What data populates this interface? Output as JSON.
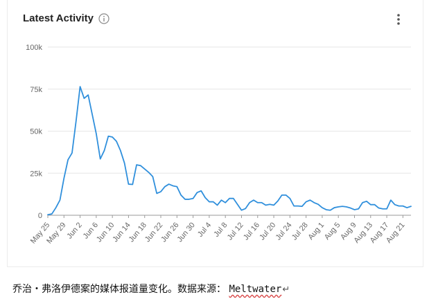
{
  "card": {
    "title": "Latest Activity",
    "info_icon": "info-circle-icon",
    "menu_icon": "more-vertical-icon"
  },
  "chart_data": {
    "type": "line",
    "title": "Latest Activity",
    "xlabel": "",
    "ylabel": "",
    "ylim": [
      0,
      100000
    ],
    "yticks": [
      0,
      25000,
      50000,
      75000,
      100000
    ],
    "ytick_labels": [
      "0",
      "25k",
      "50k",
      "75k",
      "100k"
    ],
    "xtick_labels": [
      "May 25",
      "May 29",
      "Jun 2",
      "Jun 6",
      "Jun 10",
      "Jun 14",
      "Jun 18",
      "Jun 22",
      "Jun 26",
      "Jun 30",
      "Jul 4",
      "Jul 8",
      "Jul 12",
      "Jul 16",
      "Jul 20",
      "Jul 24",
      "Jul 28",
      "Aug 1",
      "Aug 5",
      "Aug 9",
      "Aug 13",
      "Aug 17",
      "Aug 21"
    ],
    "grid": true,
    "line_color": "#2f8fdc",
    "series": [
      {
        "x": [
          "May 25",
          "May 26",
          "May 27",
          "May 28",
          "May 29",
          "May 30",
          "May 31",
          "Jun 1",
          "Jun 2",
          "Jun 3",
          "Jun 4",
          "Jun 5",
          "Jun 6",
          "Jun 7",
          "Jun 8",
          "Jun 9",
          "Jun 10",
          "Jun 11",
          "Jun 12",
          "Jun 13",
          "Jun 14",
          "Jun 15",
          "Jun 16",
          "Jun 17",
          "Jun 18",
          "Jun 19",
          "Jun 20",
          "Jun 21",
          "Jun 22",
          "Jun 23",
          "Jun 24",
          "Jun 25",
          "Jun 26",
          "Jun 27",
          "Jun 28",
          "Jun 29",
          "Jun 30",
          "Jul 1",
          "Jul 2",
          "Jul 3",
          "Jul 4",
          "Jul 5",
          "Jul 6",
          "Jul 7",
          "Jul 8",
          "Jul 9",
          "Jul 10",
          "Jul 11",
          "Jul 12",
          "Jul 13",
          "Jul 14",
          "Jul 15",
          "Jul 16",
          "Jul 17",
          "Jul 18",
          "Jul 19",
          "Jul 20",
          "Jul 21",
          "Jul 22",
          "Jul 23",
          "Jul 24",
          "Jul 25",
          "Jul 26",
          "Jul 27",
          "Jul 28",
          "Jul 29",
          "Jul 30",
          "Jul 31",
          "Aug 1",
          "Aug 2",
          "Aug 3",
          "Aug 4",
          "Aug 5",
          "Aug 6",
          "Aug 7",
          "Aug 8",
          "Aug 9",
          "Aug 10",
          "Aug 11",
          "Aug 12",
          "Aug 13",
          "Aug 14",
          "Aug 15",
          "Aug 16",
          "Aug 17",
          "Aug 18",
          "Aug 19",
          "Aug 20",
          "Aug 21",
          "Aug 22",
          "Aug 23"
        ],
        "values": [
          300,
          800,
          4500,
          9000,
          22000,
          33000,
          37000,
          56000,
          76500,
          69500,
          71500,
          60000,
          48500,
          33500,
          38500,
          47000,
          46500,
          44000,
          38500,
          31000,
          18500,
          18300,
          30000,
          29500,
          27500,
          25500,
          23000,
          13000,
          14000,
          17000,
          18500,
          17500,
          17000,
          12000,
          9500,
          9500,
          10000,
          13500,
          14500,
          10500,
          8000,
          8000,
          6000,
          9000,
          7500,
          10000,
          10000,
          6500,
          3000,
          4000,
          7500,
          9000,
          7500,
          7500,
          6000,
          6500,
          6000,
          8500,
          12000,
          12000,
          10000,
          5500,
          5500,
          5300,
          8000,
          9000,
          7500,
          6500,
          4500,
          3300,
          3000,
          4500,
          5000,
          5300,
          5000,
          4300,
          3300,
          3800,
          7500,
          8300,
          6300,
          6300,
          4300,
          3800,
          3800,
          9000,
          6300,
          5500,
          5500,
          4500,
          5300
        ]
      }
    ]
  },
  "caption": {
    "text": "乔治・弗洛伊德案的媒体报道量变化。数据来源：",
    "source": "Meltwater",
    "mark": "↵"
  }
}
